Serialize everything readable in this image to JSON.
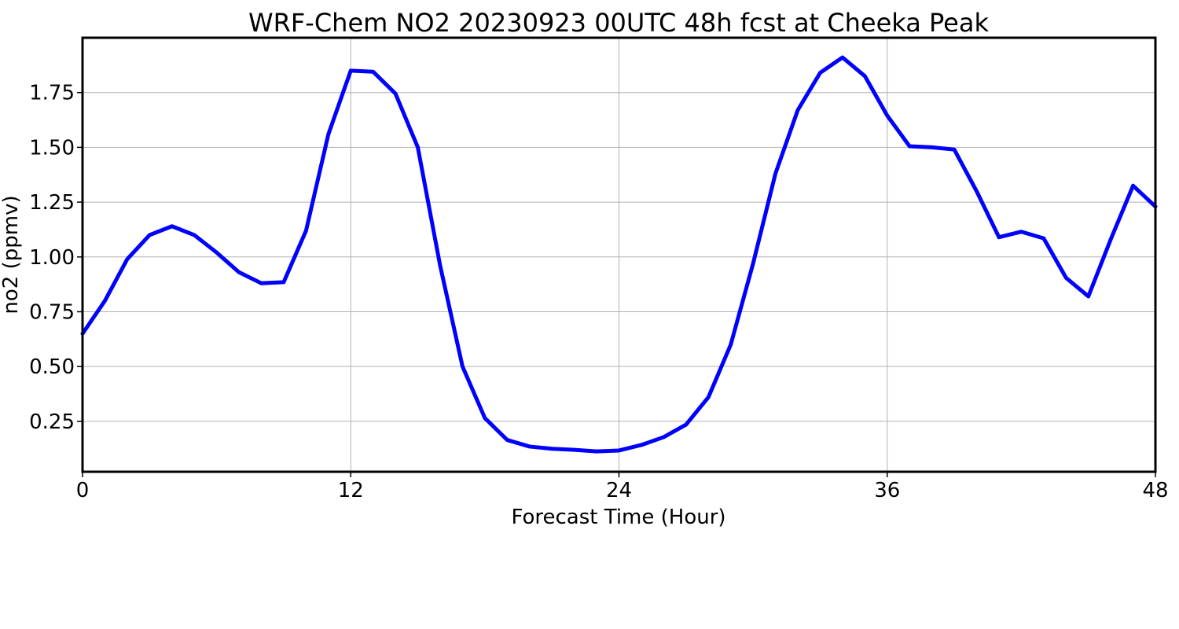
{
  "chart_data": {
    "type": "line",
    "title": "WRF-Chem NO2  20230923 00UTC 48h fcst at Cheeka Peak",
    "xlabel": "Forecast Time (Hour)",
    "ylabel": "no2  (ppmv)",
    "xlim": [
      0,
      48
    ],
    "ylim": [
      0.02,
      2.0
    ],
    "x_ticks": [
      0,
      12,
      24,
      36,
      48
    ],
    "x_tick_labels": [
      "0",
      "12",
      "24",
      "36",
      "48"
    ],
    "y_ticks": [
      0.25,
      0.5,
      0.75,
      1.0,
      1.25,
      1.5,
      1.75
    ],
    "y_tick_labels": [
      "0.25",
      "0.50",
      "0.75",
      "1.00",
      "1.25",
      "1.50",
      "1.75"
    ],
    "grid": true,
    "color": "#0000ff",
    "series": [
      {
        "x": [
          0,
          1,
          2,
          3,
          4,
          5,
          6,
          7,
          8,
          9,
          10,
          11,
          12,
          13,
          14,
          15,
          16,
          17,
          18,
          19,
          20,
          21,
          22,
          23,
          24,
          25,
          26,
          27,
          28,
          29,
          30,
          31,
          32,
          33,
          34,
          35,
          36,
          37,
          38,
          39,
          40,
          41,
          42,
          43,
          44,
          45,
          46,
          47,
          48
        ],
        "values": [
          0.65,
          0.8,
          0.99,
          1.1,
          1.14,
          1.1,
          1.02,
          0.93,
          0.88,
          0.885,
          1.12,
          1.56,
          1.85,
          1.845,
          1.745,
          1.5,
          0.96,
          0.5,
          0.265,
          0.165,
          0.135,
          0.125,
          0.12,
          0.113,
          0.117,
          0.142,
          0.178,
          0.235,
          0.36,
          0.6,
          0.97,
          1.38,
          1.67,
          1.84,
          1.91,
          1.825,
          1.645,
          1.505,
          1.5,
          1.49,
          1.3,
          1.09,
          1.115,
          1.085,
          0.905,
          0.82,
          1.08,
          1.325,
          1.23
        ]
      }
    ]
  }
}
